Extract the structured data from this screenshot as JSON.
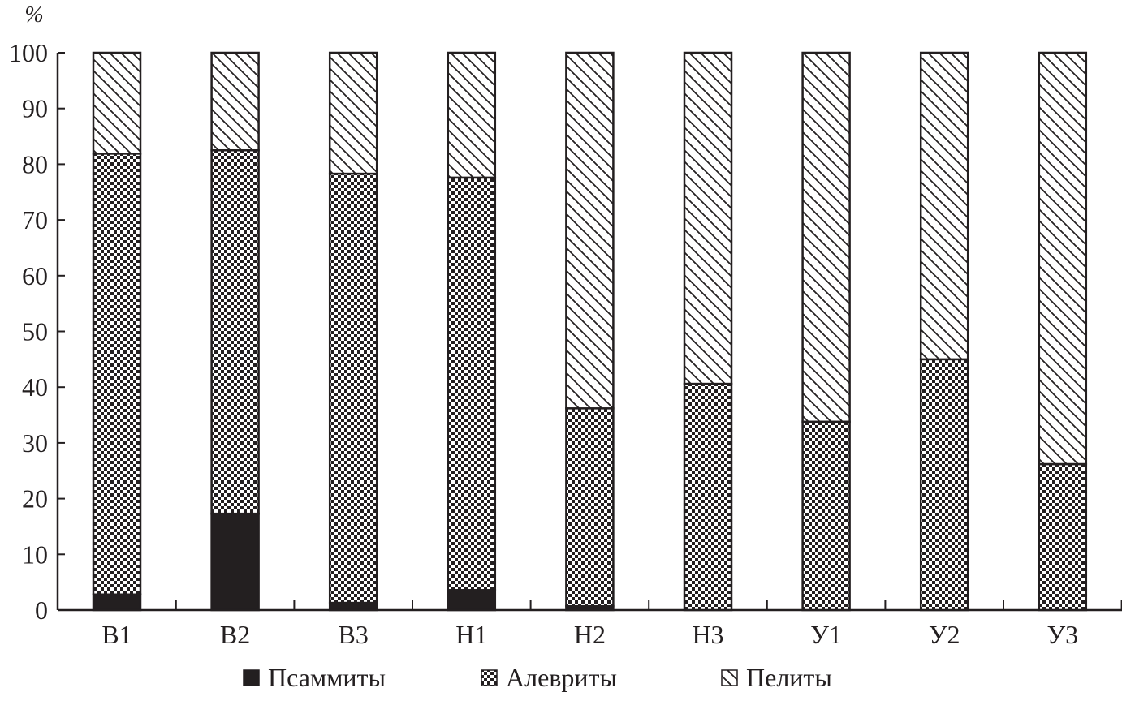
{
  "chart_data": {
    "type": "bar",
    "stacked": true,
    "title": "",
    "xlabel": "",
    "ylabel": "%",
    "ylim": [
      0,
      100
    ],
    "yticks": [
      0,
      10,
      20,
      30,
      40,
      50,
      60,
      70,
      80,
      90,
      100
    ],
    "grid": false,
    "legend_position": "bottom",
    "categories": [
      "B1",
      "B2",
      "B3",
      "H1",
      "H2",
      "H3",
      "У1",
      "У2",
      "У3"
    ],
    "series": [
      {
        "name": "Псаммиты",
        "pattern": "solid",
        "color": "#231f20",
        "values": [
          2.8,
          17.3,
          1.3,
          3.6,
          0.7,
          0,
          0,
          0,
          0
        ]
      },
      {
        "name": "Алевриты",
        "pattern": "checkerboard",
        "color": "#231f20",
        "values": [
          79.1,
          65.2,
          77.0,
          74.0,
          35.5,
          40.6,
          33.8,
          45.0,
          26.2
        ]
      },
      {
        "name": "Пелиты",
        "pattern": "diagonal-hatch",
        "color": "#231f20",
        "values": [
          18.1,
          17.5,
          21.7,
          22.4,
          63.8,
          59.4,
          66.2,
          55.0,
          73.8
        ]
      }
    ]
  }
}
